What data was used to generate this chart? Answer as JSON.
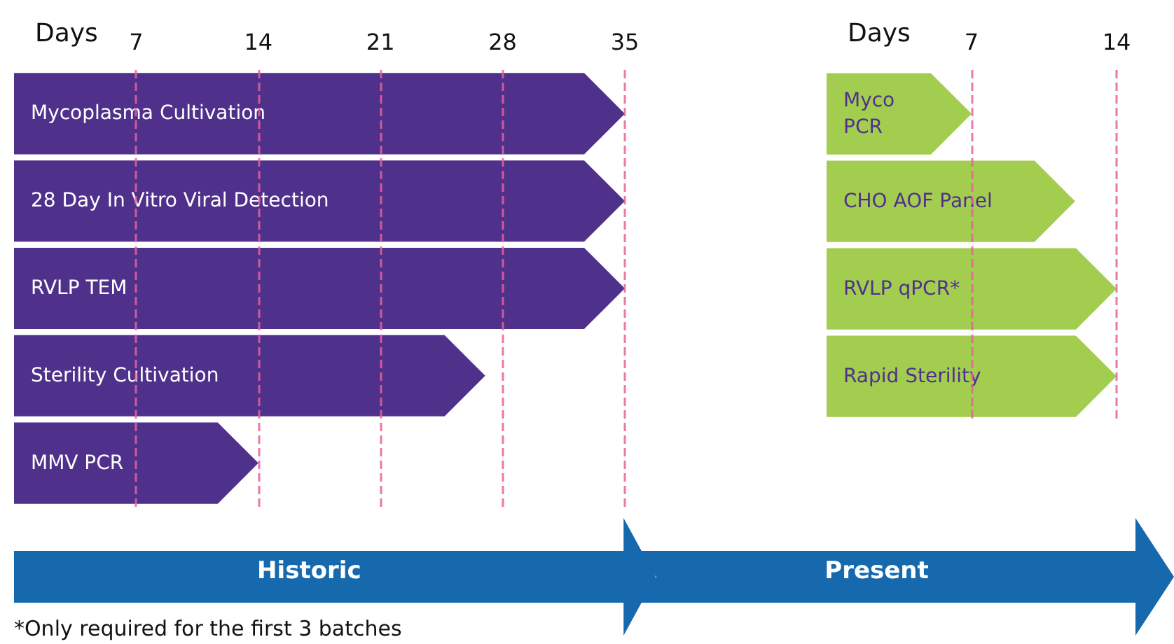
{
  "chart_data": [
    {
      "type": "bar",
      "orientation": "horizontal",
      "xlabel": "Days",
      "categories": [
        "Mycoplasma Cultivation",
        "28 Day In Vitro Viral Detection",
        "RVLP TEM",
        "Sterility Cultivation",
        "MMV PCR"
      ],
      "values": [
        35,
        35,
        35,
        27,
        14
      ],
      "color": "#4f318c",
      "xlim": [
        0,
        35
      ],
      "xticks": [
        7,
        14,
        21,
        28,
        35
      ],
      "grid": "x",
      "annotations": [
        "Historic",
        "*Only required for the first 3 batches"
      ]
    },
    {
      "type": "bar",
      "orientation": "horizontal",
      "xlabel": "Days",
      "categories": [
        "Myco PCR",
        "CHO AOF Panel",
        "RVLP qPCR*",
        "Rapid Sterility"
      ],
      "values": [
        7,
        12,
        14,
        14
      ],
      "color": "#a3cd4f",
      "xlim": [
        0,
        14
      ],
      "xticks": [
        7,
        14
      ],
      "ref_lines": [
        {
          "axis": "x",
          "value": 7,
          "color": "#e8609a",
          "line_style": "dashed"
        },
        {
          "axis": "x",
          "value": 14,
          "color": "#e8609a",
          "line_style": "dashed"
        }
      ],
      "annotations": [
        "Present"
      ]
    }
  ]
}
